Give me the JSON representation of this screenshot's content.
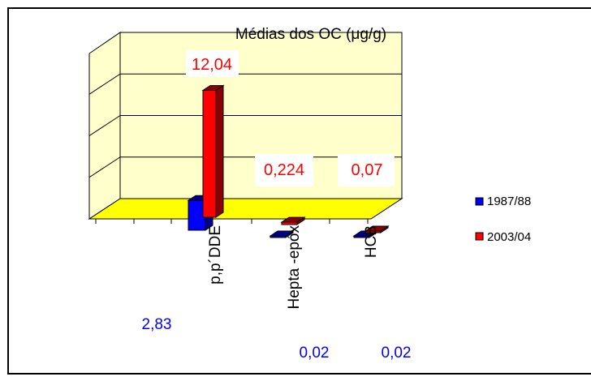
{
  "chart_data": {
    "type": "bar",
    "title": "Médias dos OC (μg/g)",
    "categories": [
      "p,p´DDE",
      "Hepta -epóx",
      "HCB"
    ],
    "series": [
      {
        "name": "1987/88",
        "color": "#0000FF",
        "values": [
          2.83,
          0.02,
          0.02
        ],
        "labels": [
          "2,83",
          "0,02",
          "0,02"
        ]
      },
      {
        "name": "2003/04",
        "color": "#FF0000",
        "values": [
          12.04,
          0.224,
          0.07
        ],
        "labels": [
          "12,04",
          "0,224",
          "0,07"
        ]
      }
    ],
    "ylim": [
      0,
      16
    ],
    "grid": true,
    "legend_position": "right",
    "colors": {
      "wall": "#FFFFCC",
      "floor": "#FFFF00",
      "label_blue": "#0000FF",
      "label_red": "#FF0000"
    }
  }
}
